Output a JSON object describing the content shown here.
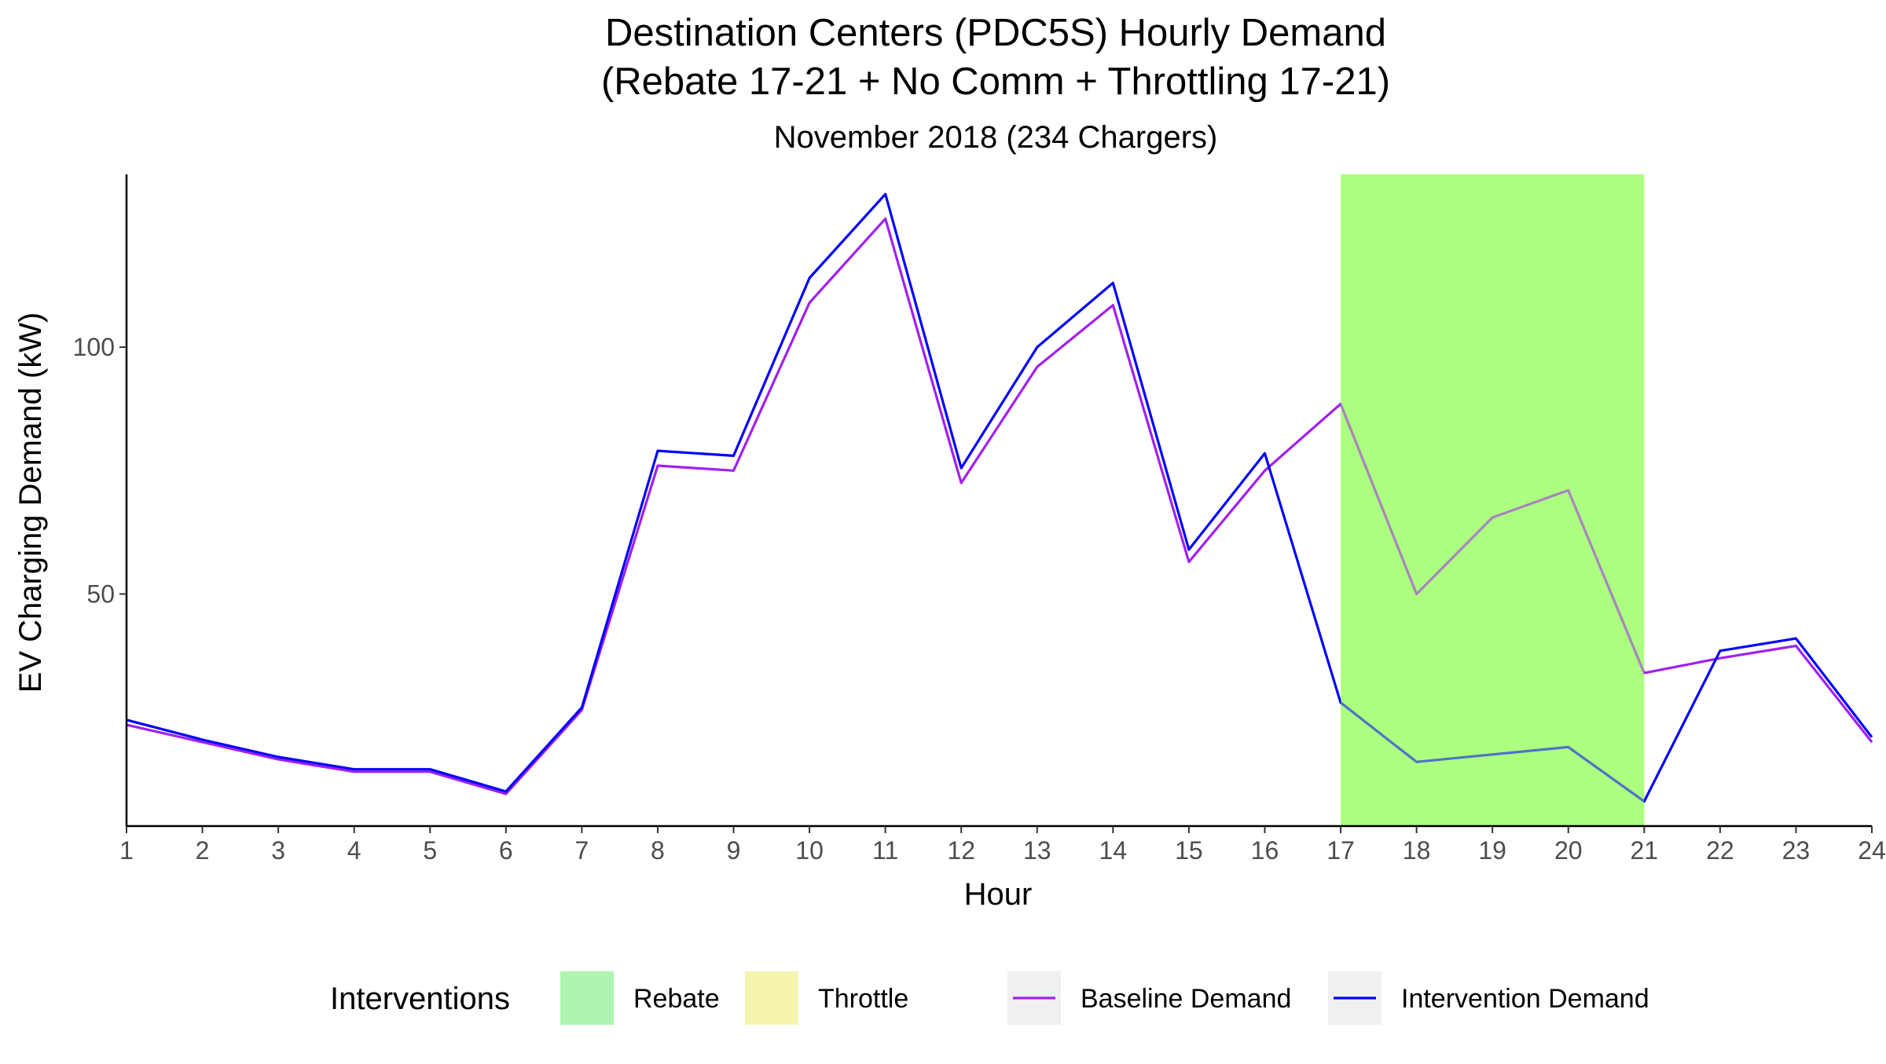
{
  "chart_data": {
    "type": "line",
    "title": "Destination Centers (PDC5S) Hourly Demand",
    "title_line2": "(Rebate 17-21 + No Comm + Throttling 17-21)",
    "subtitle": "November 2018 (234 Chargers)",
    "xlabel": "Hour",
    "ylabel": "EV Charging Demand (kW)",
    "x": [
      1,
      2,
      3,
      4,
      5,
      6,
      7,
      8,
      9,
      10,
      11,
      12,
      13,
      14,
      15,
      16,
      17,
      18,
      19,
      20,
      21,
      22,
      23,
      24
    ],
    "xlim": [
      1,
      24
    ],
    "ylim": [
      3,
      135
    ],
    "x_ticks": [
      "1",
      "2",
      "3",
      "4",
      "5",
      "6",
      "7",
      "8",
      "9",
      "10",
      "11",
      "12",
      "13",
      "14",
      "15",
      "16",
      "17",
      "18",
      "19",
      "20",
      "21",
      "22",
      "23",
      "24"
    ],
    "y_ticks": [
      {
        "value": 50,
        "label": "50"
      },
      {
        "value": 100,
        "label": "100"
      }
    ],
    "grid": false,
    "series": [
      {
        "name": "Baseline Demand",
        "color": "#a020f0",
        "values": [
          23.5,
          20,
          16.5,
          14,
          14,
          9.5,
          26.5,
          76,
          75,
          109,
          126,
          72.5,
          96,
          108.5,
          56.5,
          75,
          88.5,
          50,
          65.5,
          71,
          34,
          37,
          39.5,
          20
        ]
      },
      {
        "name": "Intervention Demand",
        "color": "#0000ff",
        "values": [
          24.5,
          20.5,
          17,
          14.5,
          14.5,
          10,
          27,
          79,
          78,
          114,
          131,
          75.5,
          100,
          113,
          59,
          78.5,
          28,
          16,
          17.5,
          19,
          8,
          38.5,
          41,
          21
        ]
      }
    ],
    "intervention_bands": [
      {
        "name": "Rebate",
        "start": 17,
        "end": 21,
        "color": "#adff80",
        "alpha": 1
      }
    ],
    "legend": {
      "position": "bottom",
      "title": "Interventions",
      "fill_items": [
        {
          "label": "Rebate",
          "color": "#adf5b0"
        },
        {
          "label": "Throttle",
          "color": "#f5f5b0"
        }
      ],
      "line_items": [
        {
          "label": "Baseline Demand",
          "color": "#a020f0"
        },
        {
          "label": "Intervention Demand",
          "color": "#0000ff"
        }
      ],
      "key_background": "#f0f0f0"
    }
  }
}
